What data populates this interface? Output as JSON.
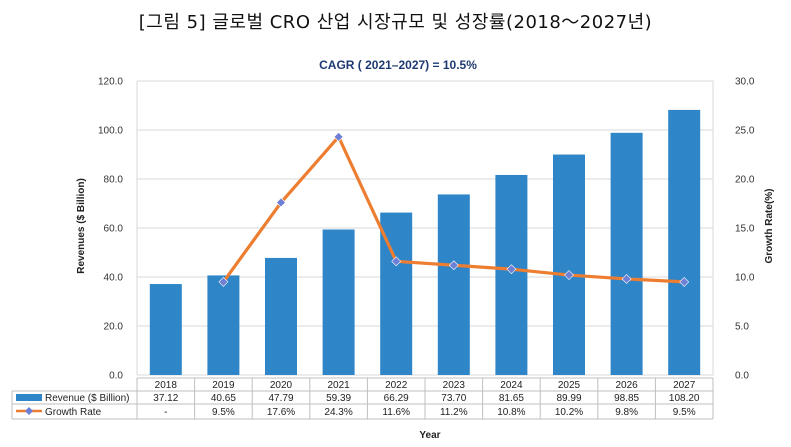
{
  "figure_title": "[그림 5] 글로벌 CRO 산업 시장규모 및 성장률(2018～2027년)",
  "colors": {
    "bar": "#2e86c9",
    "line": "#ed7d31",
    "marker": "#6e7fd6",
    "grid": "#d9d9d9",
    "table_border": "#bfbfbf"
  },
  "chart_data": {
    "type": "bar",
    "title": "CAGR ( 2021–2027) = 10.5%",
    "xlabel": "Year",
    "ylabel": "Revenues ($ Billion)",
    "y2label": "Growth Rate(%)",
    "categories": [
      "2018",
      "2019",
      "2020",
      "2021",
      "2022",
      "2023",
      "2024",
      "2025",
      "2026",
      "2027"
    ],
    "ylim": [
      0,
      120
    ],
    "y_ticks": [
      "0.0",
      "20.0",
      "40.0",
      "60.0",
      "80.0",
      "100.0",
      "120.0"
    ],
    "y2lim": [
      0,
      30
    ],
    "y2_ticks": [
      "0.0",
      "5.0",
      "10.0",
      "15.0",
      "20.0",
      "25.0",
      "30.0"
    ],
    "grid": true,
    "legend_position": "bottom-left (data table)",
    "series": [
      {
        "name": "Revenue ($ Billion)",
        "type": "bar",
        "axis": "left",
        "values": [
          37.12,
          40.65,
          47.79,
          59.39,
          66.29,
          73.7,
          81.65,
          89.99,
          98.85,
          108.2
        ],
        "labels": [
          "37.12",
          "40.65",
          "47.79",
          "59.39",
          "66.29",
          "73.70",
          "81.65",
          "89.99",
          "98.85",
          "108.20"
        ]
      },
      {
        "name": "Growth Rate",
        "type": "line",
        "axis": "right",
        "values": [
          null,
          9.5,
          17.6,
          24.3,
          11.6,
          11.2,
          10.8,
          10.2,
          9.8,
          9.5
        ],
        "labels": [
          "-",
          "9.5%",
          "17.6%",
          "24.3%",
          "11.6%",
          "11.2%",
          "10.8%",
          "10.2%",
          "9.8%",
          "9.5%"
        ]
      }
    ]
  }
}
